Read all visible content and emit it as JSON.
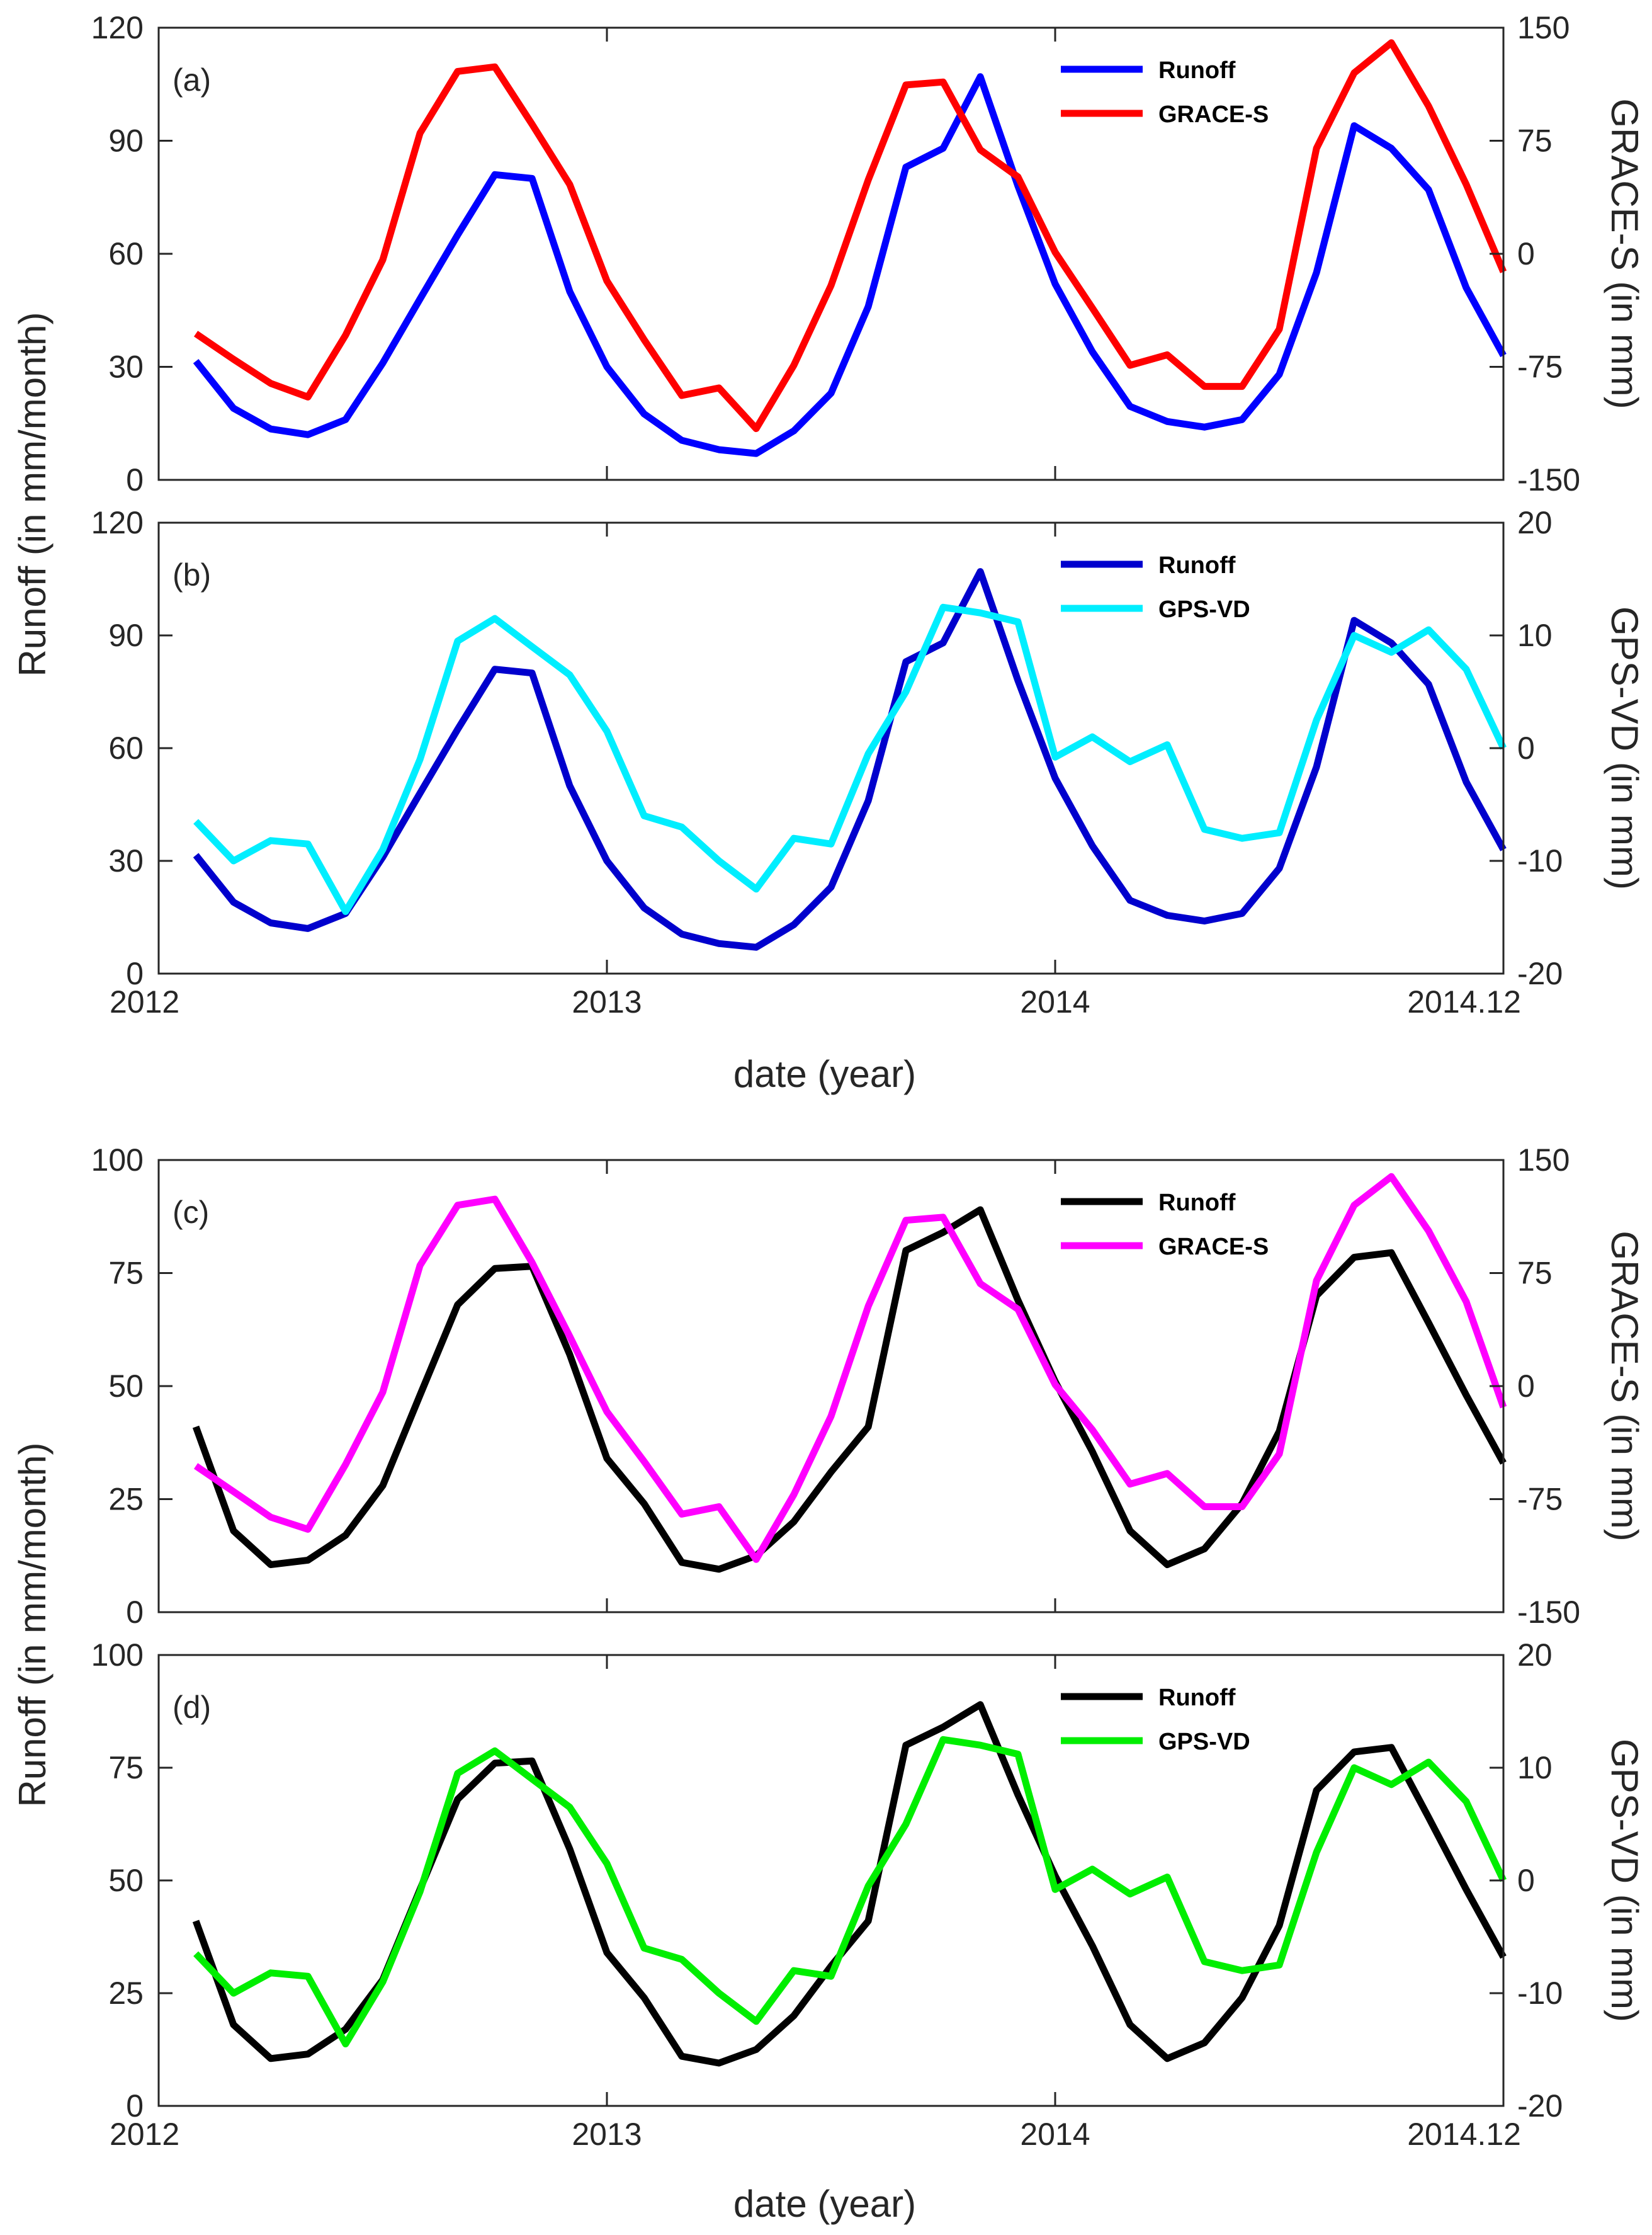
{
  "figure": {
    "shared_xlabel": "date (year)",
    "left_label_top": "Runoff (in mm/month)",
    "left_label_bottom": "Runoff (in mm/month)"
  },
  "chart_data": [
    {
      "type": "line",
      "panel": "(a)",
      "x": [
        2012.083,
        2012.167,
        2012.25,
        2012.333,
        2012.417,
        2012.5,
        2012.583,
        2012.667,
        2012.75,
        2012.833,
        2012.917,
        2013.0,
        2013.083,
        2013.167,
        2013.25,
        2013.333,
        2013.417,
        2013.5,
        2013.583,
        2013.667,
        2013.75,
        2013.833,
        2013.917,
        2014.0,
        2014.083,
        2014.167,
        2014.25,
        2014.333,
        2014.417,
        2014.5,
        2014.583,
        2014.667,
        2014.75,
        2014.833,
        2014.917,
        2015.0
      ],
      "series": [
        {
          "name": "Runoff",
          "axis": "left",
          "color": "#0000ff",
          "values": [
            31.5,
            19,
            13.5,
            12,
            16,
            31,
            48,
            65,
            81,
            80,
            50,
            30,
            17.5,
            10.5,
            8,
            7,
            13,
            23,
            46,
            83,
            88,
            107,
            78,
            52,
            34,
            19.5,
            15.5,
            14,
            16,
            28,
            55,
            94,
            88,
            77,
            51,
            33
          ]
        },
        {
          "name": "GRACE-S",
          "axis": "right",
          "color": "#ff0000",
          "values": [
            -53,
            -70,
            -86,
            -95,
            -54,
            -4,
            80,
            121,
            124,
            86,
            46,
            -18,
            -57,
            -94,
            -89,
            -116,
            -74,
            -21,
            49,
            112,
            114,
            69,
            51,
            1,
            -36,
            -74,
            -67,
            -88,
            -88,
            -50,
            70,
            120,
            140,
            98,
            46,
            -12
          ]
        }
      ],
      "ylabel_left": "",
      "ylabel_right": "GRACE-S (in mm)",
      "ylim_left": [
        0,
        120
      ],
      "yticks_left": [
        "0",
        "30",
        "60",
        "90",
        "120"
      ],
      "ylim_right": [
        -150,
        150
      ],
      "yticks_right": [
        "-150",
        "-75",
        "0",
        "75",
        "150"
      ],
      "xlim": [
        2012,
        2015
      ],
      "xticks": [
        "2012",
        "2013",
        "2014",
        "2014.12"
      ],
      "show_xticks": false,
      "legend_position": "top-right"
    },
    {
      "type": "line",
      "panel": "(b)",
      "x": [
        2012.083,
        2012.167,
        2012.25,
        2012.333,
        2012.417,
        2012.5,
        2012.583,
        2012.667,
        2012.75,
        2012.833,
        2012.917,
        2013.0,
        2013.083,
        2013.167,
        2013.25,
        2013.333,
        2013.417,
        2013.5,
        2013.583,
        2013.667,
        2013.75,
        2013.833,
        2013.917,
        2014.0,
        2014.083,
        2014.167,
        2014.25,
        2014.333,
        2014.417,
        2014.5,
        2014.583,
        2014.667,
        2014.75,
        2014.833,
        2014.917,
        2015.0
      ],
      "series": [
        {
          "name": "Runoff",
          "axis": "left",
          "color": "#0000cd",
          "values": [
            31.5,
            19,
            13.5,
            12,
            16,
            31,
            48,
            65,
            81,
            80,
            50,
            30,
            17.5,
            10.5,
            8,
            7,
            13,
            23,
            46,
            83,
            88,
            107,
            78,
            52,
            34,
            19.5,
            15.5,
            14,
            16,
            28,
            55,
            94,
            88,
            77,
            51,
            33
          ]
        },
        {
          "name": "GPS-VD",
          "axis": "right",
          "color": "#00eeff",
          "values": [
            -6.5,
            -10,
            -8.2,
            -8.5,
            -14.5,
            -9,
            -1,
            9.5,
            11.5,
            9,
            6.5,
            1.5,
            -6,
            -7,
            -10,
            -12.5,
            -8,
            -8.5,
            -0.5,
            5,
            12.5,
            12,
            11.2,
            -0.8,
            1,
            -1.2,
            0.3,
            -7.2,
            -8,
            -7.5,
            2.5,
            10,
            8.5,
            10.5,
            7,
            0
          ]
        }
      ],
      "ylabel_left": "",
      "ylabel_right": "GPS-VD (in mm)",
      "ylim_left": [
        0,
        120
      ],
      "yticks_left": [
        "0",
        "30",
        "60",
        "90",
        "120"
      ],
      "ylim_right": [
        -20,
        20
      ],
      "yticks_right": [
        "-20",
        "-10",
        "0",
        "10",
        "20"
      ],
      "xlim": [
        2012,
        2015
      ],
      "xticks": [
        "2012",
        "2013",
        "2014",
        "2014.12"
      ],
      "show_xticks": true,
      "legend_position": "top-right"
    },
    {
      "type": "line",
      "panel": "(c)",
      "x": [
        2012.083,
        2012.167,
        2012.25,
        2012.333,
        2012.417,
        2012.5,
        2012.583,
        2012.667,
        2012.75,
        2012.833,
        2012.917,
        2013.0,
        2013.083,
        2013.167,
        2013.25,
        2013.333,
        2013.417,
        2013.5,
        2013.583,
        2013.667,
        2013.75,
        2013.833,
        2013.917,
        2014.0,
        2014.083,
        2014.167,
        2014.25,
        2014.333,
        2014.417,
        2014.5,
        2014.583,
        2014.667,
        2014.75,
        2014.833,
        2014.917,
        2015.0
      ],
      "series": [
        {
          "name": "Runoff",
          "axis": "left",
          "color": "#000000",
          "values": [
            41,
            18,
            10.5,
            11.5,
            17,
            28,
            48,
            68,
            76,
            76.5,
            57,
            34,
            24,
            11,
            9.5,
            12.5,
            20,
            31,
            41,
            80,
            84,
            89,
            69,
            51,
            35.5,
            18,
            10.5,
            14,
            24,
            40,
            70,
            78.5,
            79.5,
            64,
            48,
            33
          ]
        },
        {
          "name": "GRACE-S",
          "axis": "right",
          "color": "#ff00ff",
          "values": [
            -53,
            -70,
            -87,
            -95,
            -52,
            -4,
            80,
            120,
            124,
            82,
            33,
            -17,
            -50,
            -85,
            -80,
            -115,
            -72,
            -20,
            53,
            110,
            112,
            68,
            51,
            1,
            -29,
            -65,
            -58,
            -80,
            -80,
            -45,
            70,
            120,
            139,
            103,
            56,
            -14
          ]
        }
      ],
      "ylabel_left": "",
      "ylabel_right": "GRACE-S (in mm)",
      "ylim_left": [
        0,
        100
      ],
      "yticks_left": [
        "0",
        "25",
        "50",
        "75",
        "100"
      ],
      "ylim_right": [
        -150,
        150
      ],
      "yticks_right": [
        "-150",
        "-75",
        "0",
        "75",
        "150"
      ],
      "xlim": [
        2012,
        2015
      ],
      "xticks": [
        "2012",
        "2013",
        "2014",
        "2014.12"
      ],
      "show_xticks": false,
      "legend_position": "top-right"
    },
    {
      "type": "line",
      "panel": "(d)",
      "x": [
        2012.083,
        2012.167,
        2012.25,
        2012.333,
        2012.417,
        2012.5,
        2012.583,
        2012.667,
        2012.75,
        2012.833,
        2012.917,
        2013.0,
        2013.083,
        2013.167,
        2013.25,
        2013.333,
        2013.417,
        2013.5,
        2013.583,
        2013.667,
        2013.75,
        2013.833,
        2013.917,
        2014.0,
        2014.083,
        2014.167,
        2014.25,
        2014.333,
        2014.417,
        2014.5,
        2014.583,
        2014.667,
        2014.75,
        2014.833,
        2014.917,
        2015.0
      ],
      "series": [
        {
          "name": "Runoff",
          "axis": "left",
          "color": "#000000",
          "values": [
            41,
            18,
            10.5,
            11.5,
            17,
            28,
            48,
            68,
            76,
            76.5,
            57,
            34,
            24,
            11,
            9.5,
            12.5,
            20,
            31,
            41,
            80,
            84,
            89,
            69,
            51,
            35.5,
            18,
            10.5,
            14,
            24,
            40,
            70,
            78.5,
            79.5,
            64,
            48,
            33
          ]
        },
        {
          "name": "GPS-VD",
          "axis": "right",
          "color": "#00ee00",
          "values": [
            -6.5,
            -10,
            -8.2,
            -8.5,
            -14.5,
            -9,
            -1,
            9.5,
            11.5,
            9,
            6.5,
            1.5,
            -6,
            -7,
            -10,
            -12.5,
            -8,
            -8.5,
            -0.5,
            5,
            12.5,
            12,
            11.2,
            -0.8,
            1,
            -1.2,
            0.3,
            -7.2,
            -8,
            -7.5,
            2.5,
            10,
            8.5,
            10.5,
            7,
            0
          ]
        }
      ],
      "ylabel_left": "",
      "ylabel_right": "GPS-VD (in mm)",
      "ylim_left": [
        0,
        100
      ],
      "yticks_left": [
        "0",
        "25",
        "50",
        "75",
        "100"
      ],
      "ylim_right": [
        -20,
        20
      ],
      "yticks_right": [
        "-20",
        "-10",
        "0",
        "10",
        "20"
      ],
      "xlim": [
        2012,
        2015
      ],
      "xticks": [
        "2012",
        "2013",
        "2014",
        "2014.12"
      ],
      "show_xticks": true,
      "legend_position": "top-right"
    }
  ]
}
